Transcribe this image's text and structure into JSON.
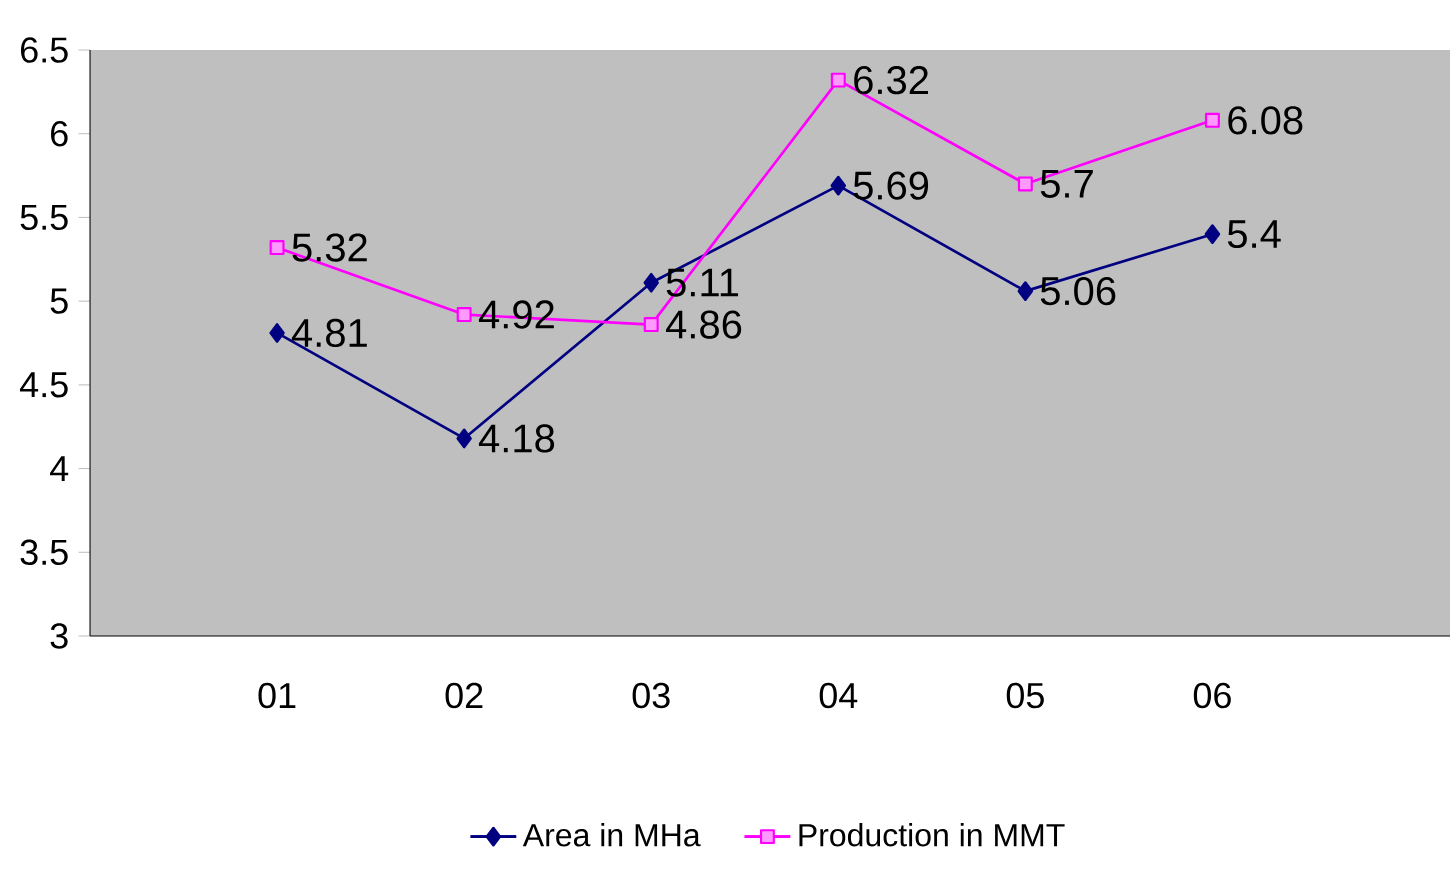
{
  "chart_data": {
    "type": "line",
    "categories": [
      "01",
      "02",
      "03",
      "04",
      "05",
      "06"
    ],
    "series": [
      {
        "name": "Area in MHa",
        "color": "#000080",
        "marker": "diamond",
        "values": [
          4.81,
          4.18,
          5.11,
          5.69,
          5.06,
          5.4
        ]
      },
      {
        "name": "Production in MMT",
        "color": "#ff00ff",
        "marker": "square",
        "values": [
          5.32,
          4.92,
          4.86,
          6.32,
          5.7,
          6.08
        ]
      }
    ],
    "ylim": [
      3,
      6.5
    ],
    "yticks": [
      3,
      3.5,
      4,
      4.5,
      5,
      5.5,
      6,
      6.5
    ],
    "data_labels": true,
    "legend": "bottom",
    "grid": false
  }
}
